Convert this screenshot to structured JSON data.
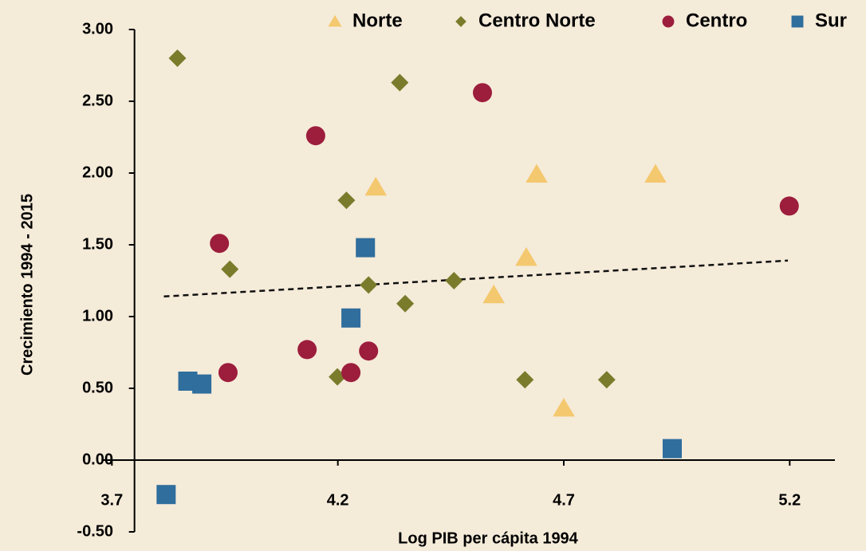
{
  "chart_data": {
    "type": "scatter",
    "xlabel": "Log PIB per cápita 1994",
    "ylabel": "Crecimiento 1994 - 2015",
    "xlim": [
      3.68,
      5.3
    ],
    "xticks": [
      3.7,
      4.2,
      4.7,
      5.2
    ],
    "ylim": [
      -0.5,
      3.0
    ],
    "yticks": [
      {
        "value": -0.5,
        "label": "-0.50"
      },
      {
        "value": 0,
        "label": "0.00"
      },
      {
        "value": 0.5,
        "label": "0.50"
      },
      {
        "value": 1,
        "label": "1.00"
      },
      {
        "value": 1.5,
        "label": "1.50"
      },
      {
        "value": 2,
        "label": "2.00"
      },
      {
        "value": 2.5,
        "label": "2.50"
      },
      {
        "value": 3,
        "label": "3.00"
      }
    ],
    "yaxis_at": 3.75,
    "grid": false,
    "legend": "top",
    "series": [
      {
        "name": "Norte",
        "marker": "triangle",
        "color": "#f4c86e",
        "x": [
          4.284,
          4.64,
          4.903,
          4.617,
          4.545,
          4.7
        ],
        "values": [
          1.9,
          1.99,
          1.99,
          1.41,
          1.15,
          0.36
        ]
      },
      {
        "name": "Centro Norte",
        "marker": "diamond",
        "color": "#7b7b2c",
        "x": [
          3.845,
          4.337,
          4.219,
          3.961,
          4.268,
          4.457,
          4.349,
          4.199,
          4.614,
          4.795
        ],
        "values": [
          2.8,
          2.63,
          1.81,
          1.33,
          1.22,
          1.25,
          1.09,
          0.58,
          0.56,
          0.56
        ]
      },
      {
        "name": "Centro",
        "marker": "circle",
        "color": "#9c1d3c",
        "x": [
          4.52,
          4.151,
          3.938,
          4.132,
          3.957,
          4.229,
          4.268,
          5.199
        ],
        "values": [
          2.56,
          2.26,
          1.51,
          0.77,
          0.61,
          0.61,
          0.76,
          1.77
        ]
      },
      {
        "name": "Sur",
        "marker": "square",
        "color": "#2f6e9d",
        "x": [
          4.261,
          4.229,
          3.868,
          3.899,
          3.82,
          4.94
        ],
        "values": [
          1.48,
          0.99,
          0.55,
          0.53,
          -0.24,
          0.08
        ]
      }
    ],
    "trendline": {
      "x": [
        3.815,
        5.196
      ],
      "values": [
        1.14,
        1.39
      ],
      "color": "#111111"
    }
  }
}
